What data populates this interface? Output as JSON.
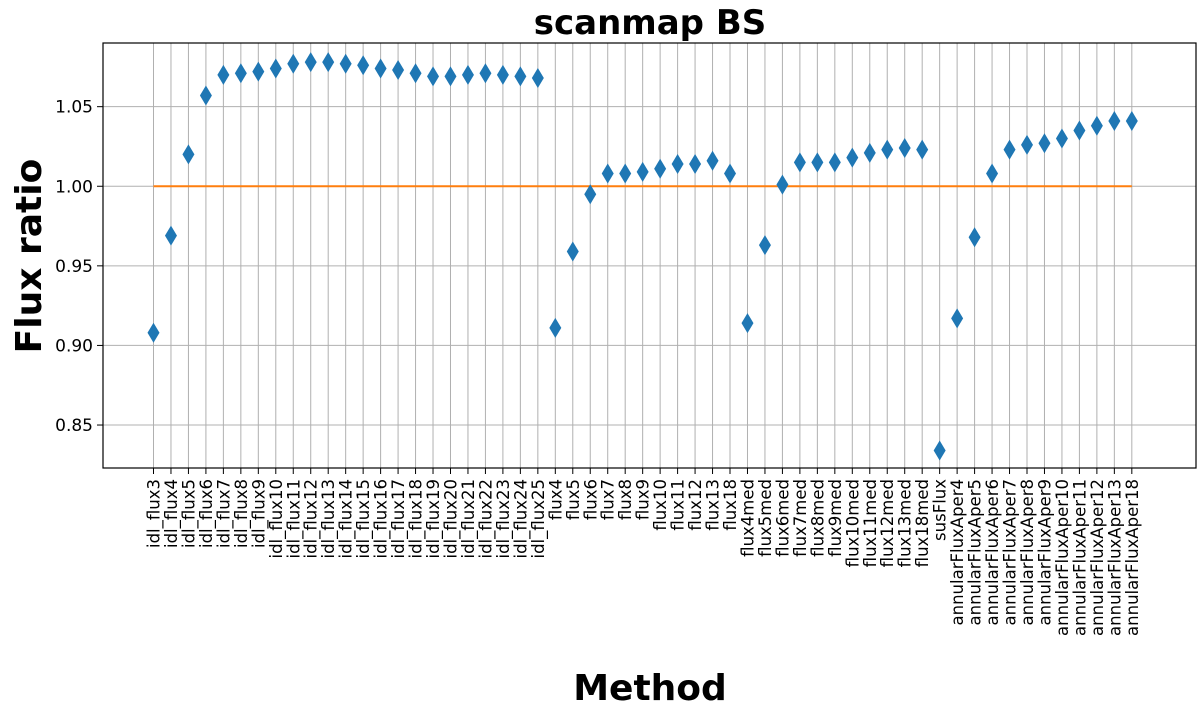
{
  "chart_data": {
    "type": "scatter",
    "title": "scanmap BS",
    "xlabel": "Method",
    "ylabel": "Flux ratio",
    "ylim": [
      0.823,
      1.09
    ],
    "yticks": [
      0.85,
      0.9,
      0.95,
      1.0,
      1.05
    ],
    "ytick_labels": [
      "0.85",
      "0.90",
      "0.95",
      "1.00",
      "1.05"
    ],
    "grid": true,
    "marker": "diamond",
    "marker_color": "#1f77b4",
    "reference_line": {
      "y": 1.0,
      "color": "#ff7f0e"
    },
    "categories": [
      "idl_flux3",
      "idl_flux4",
      "idl_flux5",
      "idl_flux6",
      "idl_flux7",
      "idl_flux8",
      "idl_flux9",
      "idl_flux10",
      "idl_flux11",
      "idl_flux12",
      "idl_flux13",
      "idl_flux14",
      "idl_flux15",
      "idl_flux16",
      "idl_flux17",
      "idl_flux18",
      "idl_flux19",
      "idl_flux20",
      "idl_flux21",
      "idl_flux22",
      "idl_flux23",
      "idl_flux24",
      "idl_flux25",
      "flux4",
      "flux5",
      "flux6",
      "flux7",
      "flux8",
      "flux9",
      "flux10",
      "flux11",
      "flux12",
      "flux13",
      "flux18",
      "flux4med",
      "flux5med",
      "flux6med",
      "flux7med",
      "flux8med",
      "flux9med",
      "flux10med",
      "flux11med",
      "flux12med",
      "flux13med",
      "flux18med",
      "susFlux",
      "annularFluxAper4",
      "annularFluxAper5",
      "annularFluxAper6",
      "annularFluxAper7",
      "annularFluxAper8",
      "annularFluxAper9",
      "annularFluxAper10",
      "annularFluxAper11",
      "annularFluxAper12",
      "annularFluxAper13",
      "annularFluxAper18"
    ],
    "values": [
      0.908,
      0.969,
      1.02,
      1.057,
      1.07,
      1.071,
      1.072,
      1.074,
      1.077,
      1.078,
      1.078,
      1.077,
      1.076,
      1.074,
      1.073,
      1.071,
      1.069,
      1.069,
      1.07,
      1.071,
      1.07,
      1.069,
      1.068,
      0.911,
      0.959,
      0.995,
      1.008,
      1.008,
      1.009,
      1.011,
      1.014,
      1.014,
      1.016,
      1.008,
      0.914,
      0.963,
      1.001,
      1.015,
      1.015,
      1.015,
      1.018,
      1.021,
      1.023,
      1.024,
      1.023,
      0.834,
      0.917,
      0.968,
      1.008,
      1.023,
      1.026,
      1.027,
      1.03,
      1.035,
      1.038,
      1.041,
      1.041
    ]
  }
}
